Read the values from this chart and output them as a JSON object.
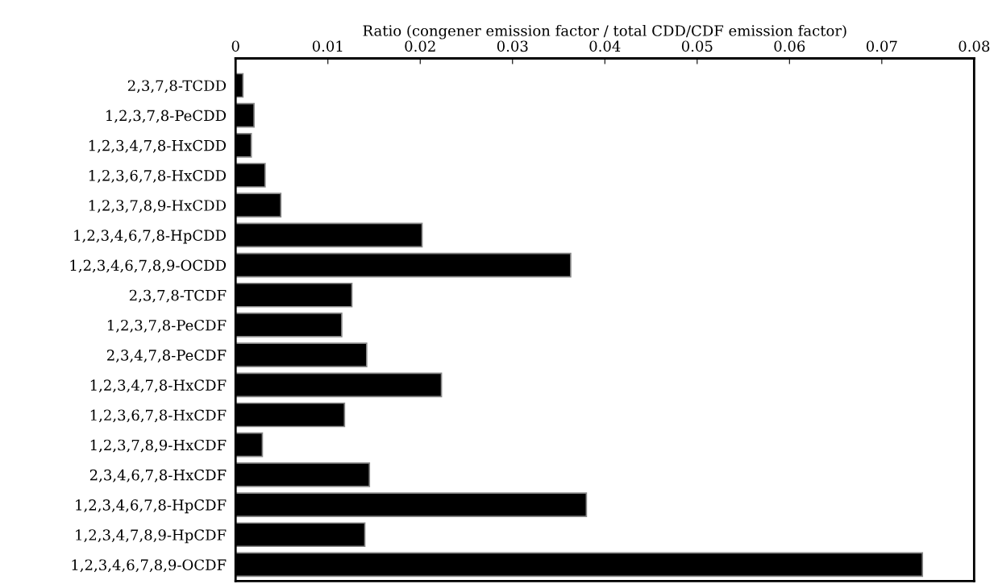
{
  "chart_data": {
    "type": "bar",
    "orientation": "horizontal",
    "xlabel": "Ratio (congener emission factor / total CDD/CDF emission factor)",
    "categories": [
      "2,3,7,8-TCDD",
      "1,2,3,7,8-PeCDD",
      "1,2,3,4,7,8-HxCDD",
      "1,2,3,6,7,8-HxCDD",
      "1,2,3,7,8,9-HxCDD",
      "1,2,3,4,6,7,8-HpCDD",
      "1,2,3,4,6,7,8,9-OCDD",
      "2,3,7,8-TCDF",
      "1,2,3,7,8-PeCDF",
      "2,3,4,7,8-PeCDF",
      "1,2,3,4,7,8-HxCDF",
      "1,2,3,6,7,8-HxCDF",
      "1,2,3,7,8,9-HxCDF",
      "2,3,4,6,7,8-HxCDF",
      "1,2,3,4,6,7,8-HpCDF",
      "1,2,3,4,7,8,9-HpCDF",
      "1,2,3,4,6,7,8,9-OCDF"
    ],
    "values": [
      0.0008,
      0.002,
      0.0017,
      0.0032,
      0.0049,
      0.0202,
      0.0363,
      0.0126,
      0.0115,
      0.0142,
      0.0223,
      0.0118,
      0.0029,
      0.0145,
      0.038,
      0.014,
      0.0744
    ],
    "color": "#000000",
    "xlim": [
      0,
      0.08
    ],
    "xticks": [
      0,
      0.01,
      0.02,
      0.03,
      0.04,
      0.05,
      0.06,
      0.07,
      0.08
    ],
    "grid": false,
    "legend": false
  }
}
